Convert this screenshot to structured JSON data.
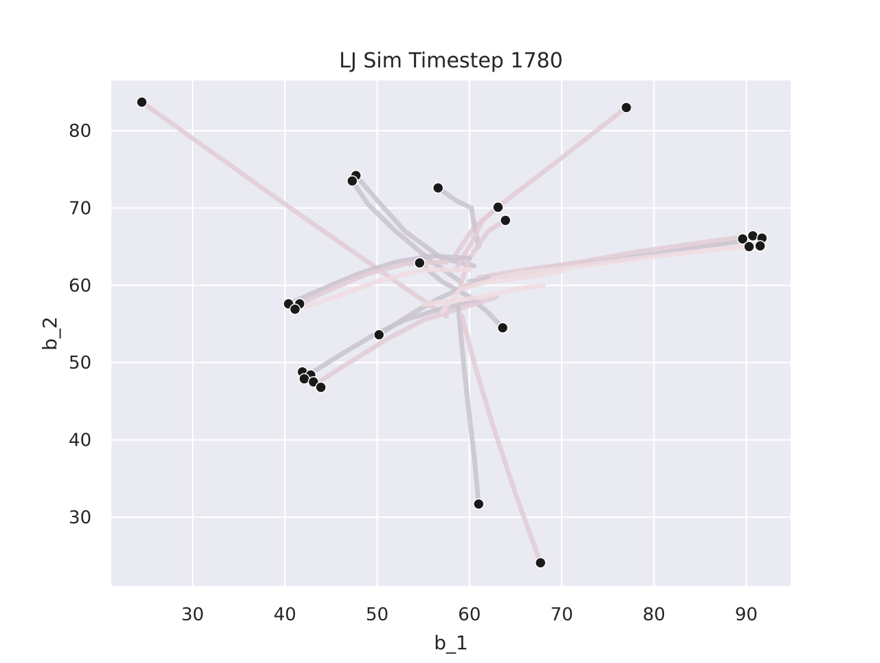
{
  "chart_data": {
    "type": "scatter",
    "title": "LJ Sim Timestep 1780",
    "xlabel": "b_1",
    "ylabel": "b_2",
    "xlim": [
      21.2,
      94.8
    ],
    "ylim": [
      21.1,
      86.5
    ],
    "xticks": [
      30,
      40,
      50,
      60,
      70,
      80,
      90
    ],
    "yticks": [
      30,
      40,
      50,
      60,
      70,
      80
    ],
    "grid": true,
    "colors": {
      "background": "#EAEAF2",
      "grid": "#FFFFFF",
      "point": "#1A1A1A",
      "point_edge": "#FFFFFF",
      "trail_light": "#F0DCE0",
      "trail_mid": "#E2CDD6",
      "trail_dark": "#C9C3CE"
    },
    "points": [
      {
        "x": 24.5,
        "y": 83.7
      },
      {
        "x": 77.0,
        "y": 83.0
      },
      {
        "x": 47.7,
        "y": 74.2
      },
      {
        "x": 47.3,
        "y": 73.5
      },
      {
        "x": 56.6,
        "y": 72.6
      },
      {
        "x": 63.1,
        "y": 70.1
      },
      {
        "x": 63.9,
        "y": 68.4
      },
      {
        "x": 89.6,
        "y": 66.0
      },
      {
        "x": 90.7,
        "y": 66.4
      },
      {
        "x": 91.7,
        "y": 66.1
      },
      {
        "x": 90.3,
        "y": 65.0
      },
      {
        "x": 91.5,
        "y": 65.1
      },
      {
        "x": 54.6,
        "y": 62.9
      },
      {
        "x": 40.4,
        "y": 57.6
      },
      {
        "x": 41.6,
        "y": 57.6
      },
      {
        "x": 41.1,
        "y": 56.9
      },
      {
        "x": 63.6,
        "y": 54.5
      },
      {
        "x": 50.2,
        "y": 53.6
      },
      {
        "x": 41.9,
        "y": 48.8
      },
      {
        "x": 42.8,
        "y": 48.4
      },
      {
        "x": 42.1,
        "y": 47.9
      },
      {
        "x": 43.1,
        "y": 47.5
      },
      {
        "x": 43.9,
        "y": 46.8
      },
      {
        "x": 61.0,
        "y": 31.7
      },
      {
        "x": 67.7,
        "y": 24.1
      }
    ],
    "trails": [
      {
        "path": [
          [
            24.5,
            83.7
          ],
          [
            40.0,
            70.5
          ],
          [
            52.0,
            60.5
          ],
          [
            57.5,
            56.0
          ]
        ],
        "tone": "mid"
      },
      {
        "path": [
          [
            77.0,
            83.0
          ],
          [
            70.0,
            76.5
          ],
          [
            64.0,
            71.0
          ],
          [
            60.5,
            67.5
          ],
          [
            58.5,
            64.0
          ]
        ],
        "tone": "mid"
      },
      {
        "path": [
          [
            47.7,
            74.2
          ],
          [
            50.0,
            71.0
          ],
          [
            53.0,
            67.0
          ],
          [
            57.0,
            63.5
          ],
          [
            60.5,
            62.5
          ]
        ],
        "tone": "dark"
      },
      {
        "path": [
          [
            47.3,
            73.5
          ],
          [
            49.0,
            70.5
          ],
          [
            52.0,
            67.0
          ],
          [
            56.0,
            63.0
          ],
          [
            59.0,
            60.5
          ]
        ],
        "tone": "dark"
      },
      {
        "path": [
          [
            56.6,
            72.6
          ],
          [
            58.5,
            71.0
          ],
          [
            60.2,
            70.0
          ],
          [
            60.5,
            68.0
          ],
          [
            61.0,
            65.0
          ]
        ],
        "tone": "dark"
      },
      {
        "path": [
          [
            63.1,
            70.1
          ],
          [
            61.5,
            68.5
          ],
          [
            60.0,
            65.0
          ],
          [
            58.5,
            62.0
          ]
        ],
        "tone": "mid"
      },
      {
        "path": [
          [
            63.9,
            68.4
          ],
          [
            62.0,
            67.0
          ],
          [
            60.0,
            63.5
          ],
          [
            59.0,
            60.0
          ]
        ],
        "tone": "mid"
      },
      {
        "path": [
          [
            90.0,
            65.8
          ],
          [
            85.0,
            65.0
          ],
          [
            80.0,
            64.0
          ],
          [
            75.0,
            63.2
          ],
          [
            70.0,
            62.5
          ],
          [
            65.0,
            61.5
          ],
          [
            60.0,
            60.5
          ]
        ],
        "tone": "dark"
      },
      {
        "path": [
          [
            90.7,
            66.4
          ],
          [
            85.0,
            65.5
          ],
          [
            78.0,
            64.3
          ],
          [
            72.0,
            63.0
          ],
          [
            66.0,
            62.0
          ],
          [
            61.0,
            61.0
          ]
        ],
        "tone": "mid"
      },
      {
        "path": [
          [
            91.0,
            65.2
          ],
          [
            84.0,
            64.3
          ],
          [
            77.0,
            63.3
          ],
          [
            71.0,
            62.3
          ],
          [
            65.0,
            61.5
          ],
          [
            59.5,
            60.0
          ]
        ],
        "tone": "light"
      },
      {
        "path": [
          [
            54.6,
            62.9
          ],
          [
            57.0,
            60.5
          ],
          [
            60.0,
            58.5
          ],
          [
            62.0,
            56.5
          ],
          [
            63.6,
            54.5
          ]
        ],
        "tone": "dark"
      },
      {
        "path": [
          [
            40.4,
            57.6
          ],
          [
            44.0,
            59.5
          ],
          [
            48.0,
            61.5
          ],
          [
            52.0,
            63.0
          ],
          [
            56.0,
            63.8
          ],
          [
            60.0,
            63.5
          ]
        ],
        "tone": "dark"
      },
      {
        "path": [
          [
            41.6,
            57.6
          ],
          [
            45.0,
            59.5
          ],
          [
            49.0,
            61.5
          ],
          [
            53.0,
            62.8
          ],
          [
            57.5,
            63.0
          ]
        ],
        "tone": "mid"
      },
      {
        "path": [
          [
            41.1,
            56.9
          ],
          [
            45.5,
            58.5
          ],
          [
            50.0,
            60.5
          ],
          [
            55.0,
            62.0
          ],
          [
            60.0,
            62.0
          ]
        ],
        "tone": "light"
      },
      {
        "path": [
          [
            50.2,
            53.6
          ],
          [
            54.0,
            56.5
          ],
          [
            57.0,
            58.5
          ],
          [
            60.0,
            60.0
          ],
          [
            62.0,
            61.0
          ]
        ],
        "tone": "dark"
      },
      {
        "path": [
          [
            42.8,
            48.6
          ],
          [
            46.0,
            51.0
          ],
          [
            49.5,
            53.5
          ],
          [
            53.0,
            55.5
          ],
          [
            57.0,
            57.0
          ],
          [
            61.0,
            58.0
          ]
        ],
        "tone": "dark"
      },
      {
        "path": [
          [
            43.4,
            47.3
          ],
          [
            47.0,
            50.0
          ],
          [
            51.0,
            53.0
          ],
          [
            55.0,
            55.5
          ],
          [
            59.0,
            57.0
          ],
          [
            63.0,
            58.5
          ]
        ],
        "tone": "mid"
      },
      {
        "path": [
          [
            61.0,
            31.7
          ],
          [
            60.5,
            38.0
          ],
          [
            59.8,
            45.0
          ],
          [
            59.2,
            52.0
          ],
          [
            58.8,
            57.0
          ]
        ],
        "tone": "dark"
      },
      {
        "path": [
          [
            67.7,
            24.1
          ],
          [
            65.0,
            33.0
          ],
          [
            62.5,
            42.0
          ],
          [
            60.5,
            50.0
          ],
          [
            59.2,
            56.0
          ]
        ],
        "tone": "mid"
      },
      {
        "path": [
          [
            57.0,
            56.5
          ],
          [
            59.0,
            59.5
          ],
          [
            62.0,
            60.5
          ],
          [
            66.0,
            61.0
          ],
          [
            70.0,
            61.8
          ]
        ],
        "tone": "light"
      },
      {
        "path": [
          [
            55.0,
            57.5
          ],
          [
            58.0,
            58.0
          ],
          [
            61.5,
            58.5
          ],
          [
            65.0,
            59.5
          ],
          [
            68.0,
            60.0
          ]
        ],
        "tone": "light"
      }
    ]
  }
}
